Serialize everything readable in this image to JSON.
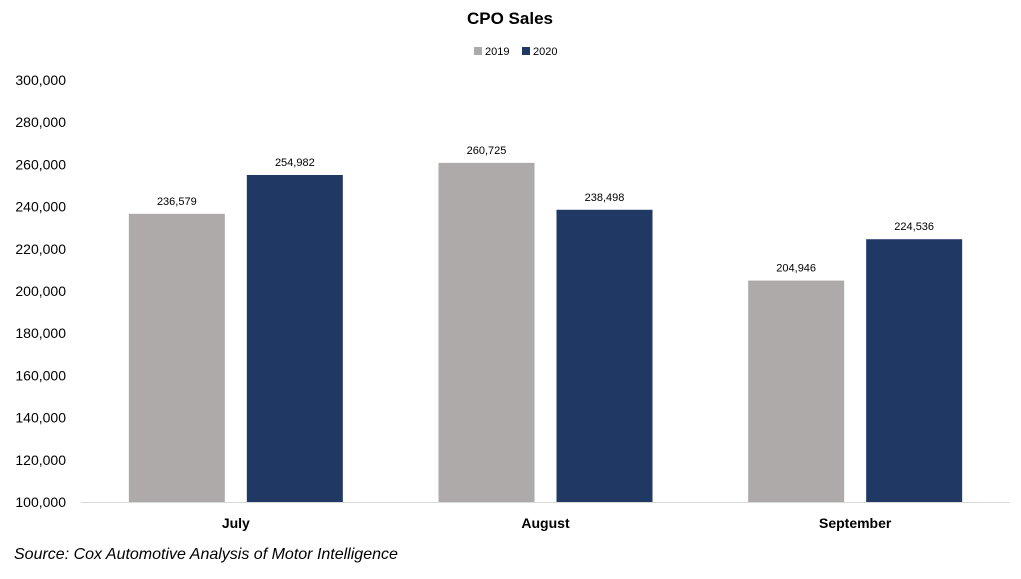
{
  "source_note": "Source: Cox Automotive Analysis of Motor Intelligence",
  "chart_data": {
    "type": "bar",
    "title": "CPO Sales",
    "xlabel": "",
    "ylabel": "",
    "categories": [
      "July",
      "August",
      "September"
    ],
    "series": [
      {
        "name": "2019",
        "color": "#AEAAAA",
        "values": [
          236579,
          260725,
          204946
        ]
      },
      {
        "name": "2020",
        "color": "#203864",
        "values": [
          254982,
          238498,
          224536
        ]
      }
    ],
    "ylim": [
      100000,
      300000
    ],
    "y_ticks": [
      "100,000",
      "120,000",
      "140,000",
      "160,000",
      "180,000",
      "200,000",
      "220,000",
      "240,000",
      "260,000",
      "280,000",
      "300,000"
    ],
    "data_labels": [
      [
        "236,579",
        "260,725",
        "204,946"
      ],
      [
        "254,982",
        "238,498",
        "224,536"
      ]
    ],
    "grid": false,
    "legend_position": "top-center"
  }
}
